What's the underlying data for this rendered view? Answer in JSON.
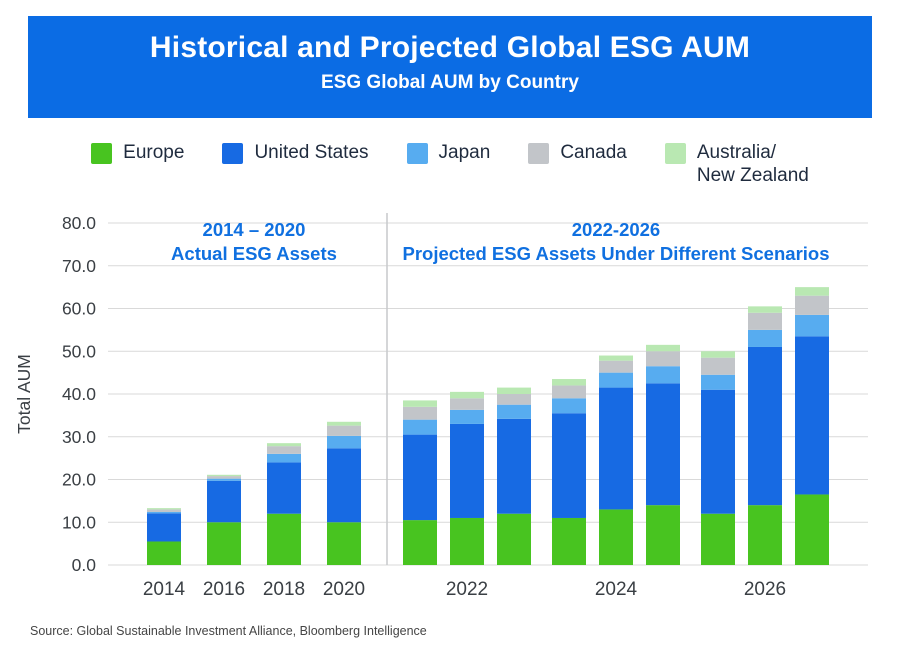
{
  "colors": {
    "banner_blue": "#0b6ce4",
    "accent_blue": "#1070e0",
    "grid": "#d9d9d9",
    "divider": "#c7c9cc",
    "axis_text": "#3a3f44",
    "legend_text": "#1f2b3e"
  },
  "footer": {
    "source": "Source: Global Sustainable Investment Alliance, Bloomberg Intelligence"
  },
  "chart_data": {
    "type": "bar",
    "stacked": true,
    "title": "Historical and Projected Global ESG AUM",
    "subtitle": "ESG Global AUM by Country",
    "ylabel": "Total AUM",
    "ylim": [
      0,
      80
    ],
    "ytick_step": 10,
    "ytick_labels": [
      "0.0",
      "10.0",
      "20.0",
      "30.0",
      "40.0",
      "50.0",
      "60.0",
      "70.0",
      "80.0"
    ],
    "grid": true,
    "legend_position": "top",
    "series": [
      {
        "name": "Europe",
        "legend_label": "Europe",
        "color": "#48c420"
      },
      {
        "name": "United States",
        "legend_label": "United States",
        "color": "#176ae3"
      },
      {
        "name": "Japan",
        "legend_label": "Japan",
        "color": "#57acf0"
      },
      {
        "name": "Canada",
        "legend_label": "Canada",
        "color": "#c2c5c9"
      },
      {
        "name": "Australia/New Zealand",
        "legend_label": "Australia/\nNew Zealand",
        "color": "#b9e8b2"
      }
    ],
    "sections": [
      {
        "annotation_lines": [
          "2014 – 2020",
          "Actual ESG Assets"
        ],
        "groups": [
          {
            "x_label": "2014",
            "bars": [
              [
                5.5,
                6.6,
                0.3,
                0.6,
                0.3
              ]
            ]
          },
          {
            "x_label": "2016",
            "bars": [
              [
                10.0,
                9.7,
                0.5,
                0.6,
                0.3
              ]
            ]
          },
          {
            "x_label": "2018",
            "bars": [
              [
                12.0,
                12.0,
                2.0,
                1.8,
                0.7
              ]
            ]
          },
          {
            "x_label": "2020",
            "bars": [
              [
                10.0,
                17.3,
                2.9,
                2.4,
                0.9
              ]
            ]
          }
        ]
      },
      {
        "annotation_lines": [
          "2022-2026",
          "Projected ESG Assets Under Different Scenarios"
        ],
        "groups": [
          {
            "x_label": "2022",
            "bars": [
              [
                10.5,
                20.0,
                3.5,
                3.0,
                1.5
              ],
              [
                11.0,
                22.0,
                3.3,
                2.7,
                1.5
              ],
              [
                12.0,
                22.2,
                3.3,
                2.5,
                1.5
              ]
            ]
          },
          {
            "x_label": "2024",
            "bars": [
              [
                11.0,
                24.5,
                3.5,
                3.0,
                1.5
              ],
              [
                13.0,
                28.5,
                3.5,
                2.8,
                1.2
              ],
              [
                14.0,
                28.5,
                4.0,
                3.5,
                1.5
              ]
            ]
          },
          {
            "x_label": "2026",
            "bars": [
              [
                12.0,
                29.0,
                3.5,
                4.0,
                1.5
              ],
              [
                14.0,
                37.0,
                4.0,
                4.0,
                1.5
              ],
              [
                16.5,
                37.0,
                5.0,
                4.5,
                2.0
              ]
            ]
          }
        ]
      }
    ]
  }
}
